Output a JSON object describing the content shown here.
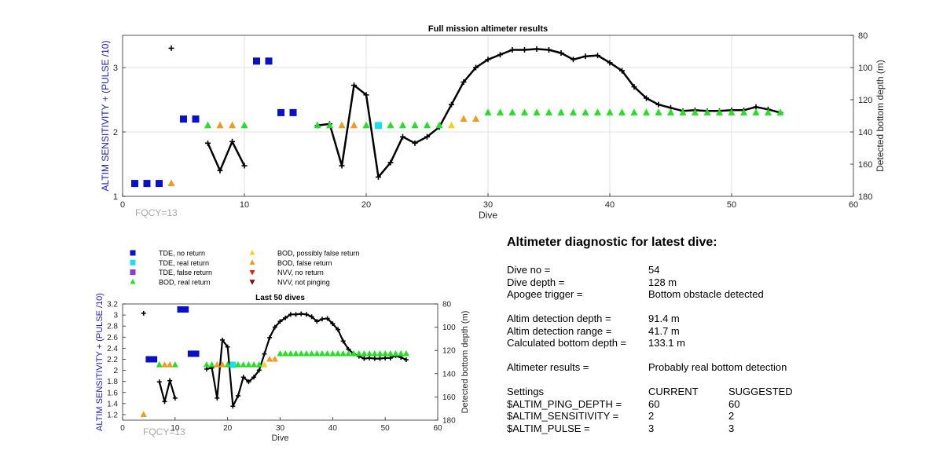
{
  "chart_data": [
    {
      "type": "scatter",
      "title": "Full mission altimeter results",
      "xlabel": "Dive",
      "ylabel": "ALTIM SENSITIVITY + (PULSE /10)",
      "y2label": "Detected bottom depth (m)",
      "xlim": [
        0,
        60
      ],
      "ylim": [
        1,
        3.5
      ],
      "y2lim": [
        180,
        80
      ],
      "xticks": [
        0,
        10,
        20,
        30,
        40,
        50,
        60
      ],
      "yticks": [
        1,
        2,
        3
      ],
      "y2ticks": [
        80,
        100,
        120,
        140,
        160,
        180
      ],
      "grid": true,
      "annotation": "FQCY=13",
      "markers": {
        "tde_no_return": [
          [
            1,
            1.2
          ],
          [
            2,
            1.2
          ],
          [
            3,
            1.2
          ],
          [
            5,
            2.2
          ],
          [
            6,
            2.2
          ],
          [
            11,
            3.1
          ],
          [
            12,
            3.1
          ],
          [
            13,
            2.3
          ],
          [
            14,
            2.3
          ]
        ],
        "tde_real_return": [
          [
            21,
            2.1
          ]
        ],
        "bod_real_return": [
          [
            7,
            2.1
          ],
          [
            10,
            2.1
          ],
          [
            16,
            2.1
          ],
          [
            17,
            2.1
          ],
          [
            20,
            2.1
          ],
          [
            22,
            2.1
          ],
          [
            23,
            2.1
          ],
          [
            24,
            2.1
          ],
          [
            25,
            2.1
          ],
          [
            26,
            2.1
          ],
          [
            30,
            2.3
          ],
          [
            31,
            2.3
          ],
          [
            32,
            2.3
          ],
          [
            33,
            2.3
          ],
          [
            34,
            2.3
          ],
          [
            35,
            2.3
          ],
          [
            36,
            2.3
          ],
          [
            37,
            2.3
          ],
          [
            38,
            2.3
          ],
          [
            39,
            2.3
          ],
          [
            40,
            2.3
          ],
          [
            41,
            2.3
          ],
          [
            42,
            2.3
          ],
          [
            43,
            2.3
          ],
          [
            44,
            2.3
          ],
          [
            45,
            2.3
          ],
          [
            46,
            2.3
          ],
          [
            47,
            2.3
          ],
          [
            48,
            2.3
          ],
          [
            49,
            2.3
          ],
          [
            50,
            2.3
          ],
          [
            51,
            2.3
          ],
          [
            52,
            2.3
          ],
          [
            53,
            2.3
          ],
          [
            54,
            2.3
          ]
        ],
        "bod_possibly_false": [
          [
            27,
            2.1
          ]
        ],
        "bod_false_return": [
          [
            4,
            1.2
          ],
          [
            8,
            2.1
          ],
          [
            9,
            2.1
          ],
          [
            18,
            2.1
          ],
          [
            19,
            2.1
          ],
          [
            28,
            2.2
          ],
          [
            29,
            2.2
          ]
        ]
      },
      "depth_points": [
        [
          4,
          88
        ]
      ],
      "depth_line": [
        [
          7,
          147
        ],
        [
          8,
          164
        ],
        [
          9,
          146
        ],
        [
          10,
          161
        ],
        [
          null,
          null
        ],
        [
          16,
          136
        ],
        [
          17,
          135
        ],
        [
          18,
          161
        ],
        [
          19,
          111
        ],
        [
          20,
          117
        ],
        [
          21,
          168
        ],
        [
          22,
          159
        ],
        [
          23,
          143
        ],
        [
          24,
          147
        ],
        [
          25,
          143
        ],
        [
          26,
          137
        ],
        [
          27,
          123
        ],
        [
          28,
          109
        ],
        [
          29,
          100
        ],
        [
          30,
          95
        ],
        [
          31,
          92
        ],
        [
          32,
          89
        ],
        [
          33,
          89
        ],
        [
          34,
          88.5
        ],
        [
          35,
          89
        ],
        [
          36,
          91
        ],
        [
          37,
          95
        ],
        [
          38,
          93
        ],
        [
          39,
          92.5
        ],
        [
          40,
          97
        ],
        [
          41,
          102
        ],
        [
          42,
          112
        ],
        [
          43,
          119
        ],
        [
          44,
          123
        ],
        [
          45,
          125
        ],
        [
          46,
          127
        ],
        [
          47,
          126.5
        ],
        [
          48,
          127
        ],
        [
          49,
          127
        ],
        [
          50,
          126.5
        ],
        [
          51,
          126.5
        ],
        [
          52,
          124.5
        ],
        [
          53,
          126
        ],
        [
          54,
          128
        ]
      ]
    },
    {
      "type": "scatter",
      "title": "Last 50 dives",
      "xlabel": "Dive",
      "ylabel": "ALTIM SENSITIVITY + (PULSE /10)",
      "y2label": "Detected bottom depth (m)",
      "xlim": [
        0,
        60
      ],
      "ylim": [
        1.1,
        3.2
      ],
      "y2lim": [
        180,
        80
      ],
      "xticks": [
        0,
        10,
        20,
        30,
        40,
        50,
        60
      ],
      "yticks": [
        1.2,
        1.4,
        1.6,
        1.8,
        2,
        2.2,
        2.4,
        2.6,
        2.8,
        3,
        3.2
      ],
      "y2ticks": [
        80,
        100,
        120,
        140,
        160,
        180
      ],
      "grid": false,
      "annotation": "FQCY=13",
      "markers": {
        "tde_no_return": [
          [
            5,
            2.2
          ],
          [
            6,
            2.2
          ],
          [
            11,
            3.1
          ],
          [
            12,
            3.1
          ],
          [
            13,
            2.3
          ],
          [
            14,
            2.3
          ]
        ],
        "tde_real_return": [
          [
            21,
            2.1
          ]
        ],
        "bod_real_return": [
          [
            7,
            2.1
          ],
          [
            10,
            2.1
          ],
          [
            16,
            2.1
          ],
          [
            17,
            2.1
          ],
          [
            20,
            2.1
          ],
          [
            22,
            2.1
          ],
          [
            23,
            2.1
          ],
          [
            24,
            2.1
          ],
          [
            25,
            2.1
          ],
          [
            26,
            2.1
          ],
          [
            30,
            2.3
          ],
          [
            31,
            2.3
          ],
          [
            32,
            2.3
          ],
          [
            33,
            2.3
          ],
          [
            34,
            2.3
          ],
          [
            35,
            2.3
          ],
          [
            36,
            2.3
          ],
          [
            37,
            2.3
          ],
          [
            38,
            2.3
          ],
          [
            39,
            2.3
          ],
          [
            40,
            2.3
          ],
          [
            41,
            2.3
          ],
          [
            42,
            2.3
          ],
          [
            43,
            2.3
          ],
          [
            44,
            2.3
          ],
          [
            45,
            2.3
          ],
          [
            46,
            2.3
          ],
          [
            47,
            2.3
          ],
          [
            48,
            2.3
          ],
          [
            49,
            2.3
          ],
          [
            50,
            2.3
          ],
          [
            51,
            2.3
          ],
          [
            52,
            2.3
          ],
          [
            53,
            2.3
          ],
          [
            54,
            2.3
          ]
        ],
        "bod_possibly_false": [
          [
            27,
            2.1
          ]
        ],
        "bod_false_return": [
          [
            4,
            1.2
          ],
          [
            8,
            2.1
          ],
          [
            9,
            2.1
          ],
          [
            18,
            2.1
          ],
          [
            19,
            2.1
          ],
          [
            28,
            2.2
          ],
          [
            29,
            2.2
          ]
        ]
      },
      "depth_points": [
        [
          4,
          88
        ]
      ],
      "depth_line": [
        [
          7,
          147
        ],
        [
          8,
          164
        ],
        [
          9,
          146
        ],
        [
          10,
          161
        ],
        [
          null,
          null
        ],
        [
          16,
          136
        ],
        [
          17,
          135
        ],
        [
          18,
          161
        ],
        [
          19,
          111
        ],
        [
          20,
          117
        ],
        [
          21,
          168
        ],
        [
          22,
          159
        ],
        [
          23,
          143
        ],
        [
          24,
          147
        ],
        [
          25,
          143
        ],
        [
          26,
          137
        ],
        [
          27,
          123
        ],
        [
          28,
          109
        ],
        [
          29,
          100
        ],
        [
          30,
          95
        ],
        [
          31,
          92
        ],
        [
          32,
          89
        ],
        [
          33,
          89
        ],
        [
          34,
          88.5
        ],
        [
          35,
          89
        ],
        [
          36,
          91
        ],
        [
          37,
          95
        ],
        [
          38,
          93
        ],
        [
          39,
          92.5
        ],
        [
          40,
          97
        ],
        [
          41,
          102
        ],
        [
          42,
          112
        ],
        [
          43,
          119
        ],
        [
          44,
          123
        ],
        [
          45,
          125
        ],
        [
          46,
          127
        ],
        [
          47,
          126.5
        ],
        [
          48,
          127
        ],
        [
          49,
          127
        ],
        [
          50,
          126.5
        ],
        [
          51,
          126.5
        ],
        [
          52,
          124.5
        ],
        [
          53,
          126
        ],
        [
          54,
          128
        ]
      ]
    }
  ],
  "legend": {
    "placement": "above-lower-chart",
    "entries": [
      {
        "key": "tde_no_return",
        "label": "TDE, no return",
        "shape": "square",
        "color": "#0a10c8"
      },
      {
        "key": "tde_real_return",
        "label": "TDE, real return",
        "shape": "square",
        "color": "#18e0f0"
      },
      {
        "key": "tde_false_return",
        "label": "TDE, false return",
        "shape": "square",
        "color": "#8a3fc8"
      },
      {
        "key": "bod_real_return",
        "label": "BOD, real return",
        "shape": "triangle-up",
        "color": "#22e022"
      },
      {
        "key": "bod_possibly_false",
        "label": "BOD, possibly false return",
        "shape": "triangle-up",
        "color": "#f2d21a"
      },
      {
        "key": "bod_false_return",
        "label": "BOD, false return",
        "shape": "triangle-up",
        "color": "#f29a1a"
      },
      {
        "key": "nvv_no_return",
        "label": "NVV, no return",
        "shape": "triangle-down",
        "color": "#e02020"
      },
      {
        "key": "nvv_not_pinging",
        "label": "NVV, not pinging",
        "shape": "triangle-down",
        "color": "#7a1010"
      }
    ]
  },
  "colors": {
    "ylabel": "#1a1ac8",
    "annotation": "#a8a8a8",
    "grid": "#e2e2e2",
    "depth": "#000000"
  },
  "diagnostic": {
    "title": "Altimeter diagnostic for latest dive:",
    "rows": [
      {
        "label": "Dive no =",
        "value": "54"
      },
      {
        "label": "Dive depth =",
        "value": "128 m"
      },
      {
        "label": "Apogee trigger =",
        "value": "Bottom obstacle detected"
      },
      null,
      {
        "label": "Altim detection depth =",
        "value": "91.4 m"
      },
      {
        "label": "Altim detection range =",
        "value": "41.7 m"
      },
      {
        "label": "Calculated bottom depth =",
        "value": "133.1 m"
      },
      null,
      {
        "label": "Altimeter results =",
        "value": "Probably real bottom detection"
      },
      null,
      {
        "label": "Settings",
        "value": "CURRENT",
        "value2": "SUGGESTED"
      },
      {
        "label": "$ALTIM_PING_DEPTH =",
        "value": "60",
        "value2": "60"
      },
      {
        "label": "$ALTIM_SENSITIVITY =",
        "value": "2",
        "value2": "2"
      },
      {
        "label": "$ALTIM_PULSE =",
        "value": "3",
        "value2": "3"
      }
    ]
  }
}
